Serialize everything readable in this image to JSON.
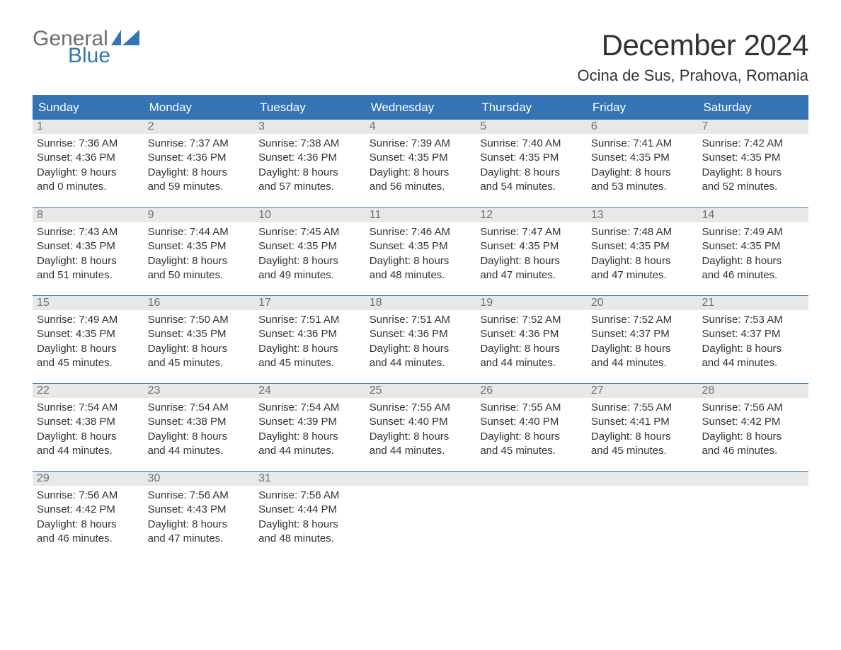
{
  "brand": {
    "part1": "General",
    "part2": "Blue",
    "color_gray": "#6d6e71",
    "color_blue": "#3474b5"
  },
  "title": "December 2024",
  "location": "Ocina de Sus, Prahova, Romania",
  "header_bg": "#3474b5",
  "header_text": "#ffffff",
  "daynum_bg": "#e8e8e8",
  "daynum_color": "#707070",
  "body_text": "#333333",
  "row_border": "#3474b5",
  "weekdays": [
    "Sunday",
    "Monday",
    "Tuesday",
    "Wednesday",
    "Thursday",
    "Friday",
    "Saturday"
  ],
  "weeks": [
    [
      {
        "n": "1",
        "sr": "Sunrise: 7:36 AM",
        "ss": "Sunset: 4:36 PM",
        "d1": "Daylight: 9 hours",
        "d2": "and 0 minutes."
      },
      {
        "n": "2",
        "sr": "Sunrise: 7:37 AM",
        "ss": "Sunset: 4:36 PM",
        "d1": "Daylight: 8 hours",
        "d2": "and 59 minutes."
      },
      {
        "n": "3",
        "sr": "Sunrise: 7:38 AM",
        "ss": "Sunset: 4:36 PM",
        "d1": "Daylight: 8 hours",
        "d2": "and 57 minutes."
      },
      {
        "n": "4",
        "sr": "Sunrise: 7:39 AM",
        "ss": "Sunset: 4:35 PM",
        "d1": "Daylight: 8 hours",
        "d2": "and 56 minutes."
      },
      {
        "n": "5",
        "sr": "Sunrise: 7:40 AM",
        "ss": "Sunset: 4:35 PM",
        "d1": "Daylight: 8 hours",
        "d2": "and 54 minutes."
      },
      {
        "n": "6",
        "sr": "Sunrise: 7:41 AM",
        "ss": "Sunset: 4:35 PM",
        "d1": "Daylight: 8 hours",
        "d2": "and 53 minutes."
      },
      {
        "n": "7",
        "sr": "Sunrise: 7:42 AM",
        "ss": "Sunset: 4:35 PM",
        "d1": "Daylight: 8 hours",
        "d2": "and 52 minutes."
      }
    ],
    [
      {
        "n": "8",
        "sr": "Sunrise: 7:43 AM",
        "ss": "Sunset: 4:35 PM",
        "d1": "Daylight: 8 hours",
        "d2": "and 51 minutes."
      },
      {
        "n": "9",
        "sr": "Sunrise: 7:44 AM",
        "ss": "Sunset: 4:35 PM",
        "d1": "Daylight: 8 hours",
        "d2": "and 50 minutes."
      },
      {
        "n": "10",
        "sr": "Sunrise: 7:45 AM",
        "ss": "Sunset: 4:35 PM",
        "d1": "Daylight: 8 hours",
        "d2": "and 49 minutes."
      },
      {
        "n": "11",
        "sr": "Sunrise: 7:46 AM",
        "ss": "Sunset: 4:35 PM",
        "d1": "Daylight: 8 hours",
        "d2": "and 48 minutes."
      },
      {
        "n": "12",
        "sr": "Sunrise: 7:47 AM",
        "ss": "Sunset: 4:35 PM",
        "d1": "Daylight: 8 hours",
        "d2": "and 47 minutes."
      },
      {
        "n": "13",
        "sr": "Sunrise: 7:48 AM",
        "ss": "Sunset: 4:35 PM",
        "d1": "Daylight: 8 hours",
        "d2": "and 47 minutes."
      },
      {
        "n": "14",
        "sr": "Sunrise: 7:49 AM",
        "ss": "Sunset: 4:35 PM",
        "d1": "Daylight: 8 hours",
        "d2": "and 46 minutes."
      }
    ],
    [
      {
        "n": "15",
        "sr": "Sunrise: 7:49 AM",
        "ss": "Sunset: 4:35 PM",
        "d1": "Daylight: 8 hours",
        "d2": "and 45 minutes."
      },
      {
        "n": "16",
        "sr": "Sunrise: 7:50 AM",
        "ss": "Sunset: 4:35 PM",
        "d1": "Daylight: 8 hours",
        "d2": "and 45 minutes."
      },
      {
        "n": "17",
        "sr": "Sunrise: 7:51 AM",
        "ss": "Sunset: 4:36 PM",
        "d1": "Daylight: 8 hours",
        "d2": "and 45 minutes."
      },
      {
        "n": "18",
        "sr": "Sunrise: 7:51 AM",
        "ss": "Sunset: 4:36 PM",
        "d1": "Daylight: 8 hours",
        "d2": "and 44 minutes."
      },
      {
        "n": "19",
        "sr": "Sunrise: 7:52 AM",
        "ss": "Sunset: 4:36 PM",
        "d1": "Daylight: 8 hours",
        "d2": "and 44 minutes."
      },
      {
        "n": "20",
        "sr": "Sunrise: 7:52 AM",
        "ss": "Sunset: 4:37 PM",
        "d1": "Daylight: 8 hours",
        "d2": "and 44 minutes."
      },
      {
        "n": "21",
        "sr": "Sunrise: 7:53 AM",
        "ss": "Sunset: 4:37 PM",
        "d1": "Daylight: 8 hours",
        "d2": "and 44 minutes."
      }
    ],
    [
      {
        "n": "22",
        "sr": "Sunrise: 7:54 AM",
        "ss": "Sunset: 4:38 PM",
        "d1": "Daylight: 8 hours",
        "d2": "and 44 minutes."
      },
      {
        "n": "23",
        "sr": "Sunrise: 7:54 AM",
        "ss": "Sunset: 4:38 PM",
        "d1": "Daylight: 8 hours",
        "d2": "and 44 minutes."
      },
      {
        "n": "24",
        "sr": "Sunrise: 7:54 AM",
        "ss": "Sunset: 4:39 PM",
        "d1": "Daylight: 8 hours",
        "d2": "and 44 minutes."
      },
      {
        "n": "25",
        "sr": "Sunrise: 7:55 AM",
        "ss": "Sunset: 4:40 PM",
        "d1": "Daylight: 8 hours",
        "d2": "and 44 minutes."
      },
      {
        "n": "26",
        "sr": "Sunrise: 7:55 AM",
        "ss": "Sunset: 4:40 PM",
        "d1": "Daylight: 8 hours",
        "d2": "and 45 minutes."
      },
      {
        "n": "27",
        "sr": "Sunrise: 7:55 AM",
        "ss": "Sunset: 4:41 PM",
        "d1": "Daylight: 8 hours",
        "d2": "and 45 minutes."
      },
      {
        "n": "28",
        "sr": "Sunrise: 7:56 AM",
        "ss": "Sunset: 4:42 PM",
        "d1": "Daylight: 8 hours",
        "d2": "and 46 minutes."
      }
    ],
    [
      {
        "n": "29",
        "sr": "Sunrise: 7:56 AM",
        "ss": "Sunset: 4:42 PM",
        "d1": "Daylight: 8 hours",
        "d2": "and 46 minutes."
      },
      {
        "n": "30",
        "sr": "Sunrise: 7:56 AM",
        "ss": "Sunset: 4:43 PM",
        "d1": "Daylight: 8 hours",
        "d2": "and 47 minutes."
      },
      {
        "n": "31",
        "sr": "Sunrise: 7:56 AM",
        "ss": "Sunset: 4:44 PM",
        "d1": "Daylight: 8 hours",
        "d2": "and 48 minutes."
      },
      {
        "empty": true
      },
      {
        "empty": true
      },
      {
        "empty": true
      },
      {
        "empty": true
      }
    ]
  ]
}
